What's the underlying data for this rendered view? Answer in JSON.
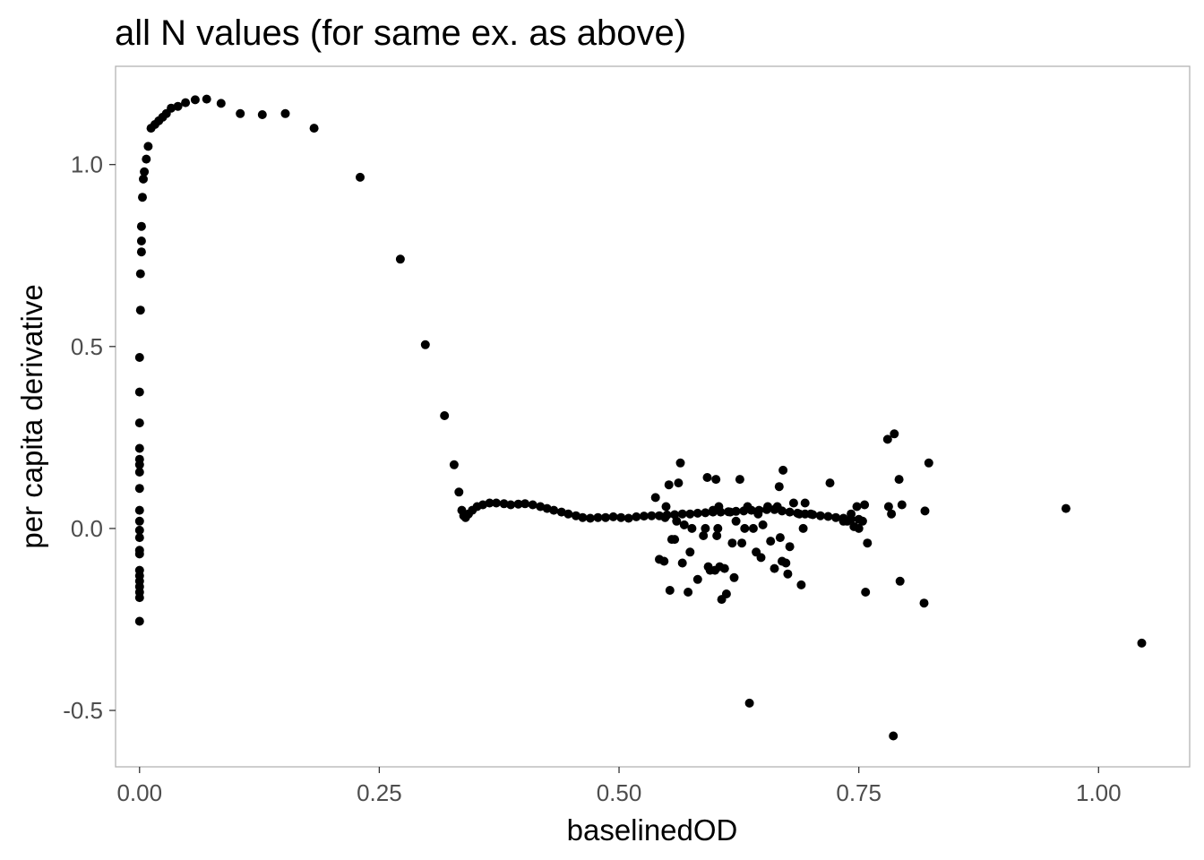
{
  "chart_data": {
    "type": "scatter",
    "title": "all N values (for same ex. as above)",
    "xlabel": "baselinedOD",
    "ylabel": "per capita derivative",
    "xlim": [
      -0.025,
      1.095
    ],
    "ylim": [
      -0.655,
      1.27
    ],
    "x_ticks": [
      {
        "value": 0.0,
        "label": "0.00"
      },
      {
        "value": 0.25,
        "label": "0.25"
      },
      {
        "value": 0.5,
        "label": "0.50"
      },
      {
        "value": 0.75,
        "label": "0.75"
      },
      {
        "value": 1.0,
        "label": "1.00"
      }
    ],
    "y_ticks": [
      {
        "value": -0.5,
        "label": "-0.5"
      },
      {
        "value": 0.0,
        "label": "0.0"
      },
      {
        "value": 0.5,
        "label": "0.5"
      },
      {
        "value": 1.0,
        "label": "1.0"
      }
    ],
    "grid": false,
    "point_color": "#000000",
    "series": [
      {
        "points": [
          [
            0.0,
            -0.255
          ],
          [
            0.0,
            -0.19
          ],
          [
            0.0,
            -0.175
          ],
          [
            0.0,
            -0.16
          ],
          [
            0.0,
            -0.145
          ],
          [
            0.0,
            -0.13
          ],
          [
            0.0,
            -0.115
          ],
          [
            0.0,
            -0.07
          ],
          [
            0.0,
            -0.06
          ],
          [
            0.0,
            -0.025
          ],
          [
            0.0,
            -0.005
          ],
          [
            0.0,
            0.02
          ],
          [
            0.0,
            0.05
          ],
          [
            0.0,
            0.11
          ],
          [
            0.0,
            0.155
          ],
          [
            0.0,
            0.175
          ],
          [
            0.0,
            0.19
          ],
          [
            0.0,
            0.22
          ],
          [
            0.0,
            0.29
          ],
          [
            0.0,
            0.375
          ],
          [
            0.0,
            0.47
          ],
          [
            0.001,
            0.6
          ],
          [
            0.001,
            0.7
          ],
          [
            0.002,
            0.76
          ],
          [
            0.002,
            0.79
          ],
          [
            0.002,
            0.83
          ],
          [
            0.003,
            0.91
          ],
          [
            0.004,
            0.96
          ],
          [
            0.005,
            0.98
          ],
          [
            0.007,
            1.015
          ],
          [
            0.009,
            1.05
          ],
          [
            0.012,
            1.1
          ],
          [
            0.016,
            1.11
          ],
          [
            0.02,
            1.12
          ],
          [
            0.024,
            1.13
          ],
          [
            0.028,
            1.14
          ],
          [
            0.033,
            1.155
          ],
          [
            0.04,
            1.16
          ],
          [
            0.048,
            1.17
          ],
          [
            0.058,
            1.178
          ],
          [
            0.07,
            1.18
          ],
          [
            0.085,
            1.168
          ],
          [
            0.105,
            1.14
          ],
          [
            0.128,
            1.137
          ],
          [
            0.152,
            1.14
          ],
          [
            0.182,
            1.1
          ],
          [
            0.23,
            0.965
          ],
          [
            0.272,
            0.74
          ],
          [
            0.298,
            0.505
          ],
          [
            0.318,
            0.31
          ],
          [
            0.328,
            0.175
          ],
          [
            0.333,
            0.1
          ],
          [
            0.336,
            0.05
          ],
          [
            0.338,
            0.035
          ],
          [
            0.34,
            0.03
          ],
          [
            0.343,
            0.04
          ],
          [
            0.347,
            0.05
          ],
          [
            0.352,
            0.06
          ],
          [
            0.358,
            0.065
          ],
          [
            0.365,
            0.07
          ],
          [
            0.372,
            0.07
          ],
          [
            0.38,
            0.068
          ],
          [
            0.387,
            0.065
          ],
          [
            0.395,
            0.067
          ],
          [
            0.402,
            0.068
          ],
          [
            0.41,
            0.065
          ],
          [
            0.418,
            0.06
          ],
          [
            0.425,
            0.055
          ],
          [
            0.432,
            0.05
          ],
          [
            0.44,
            0.045
          ],
          [
            0.447,
            0.04
          ],
          [
            0.455,
            0.035
          ],
          [
            0.462,
            0.03
          ],
          [
            0.47,
            0.028
          ],
          [
            0.478,
            0.03
          ],
          [
            0.486,
            0.03
          ],
          [
            0.494,
            0.032
          ],
          [
            0.502,
            0.03
          ],
          [
            0.51,
            0.028
          ],
          [
            0.518,
            0.032
          ],
          [
            0.526,
            0.034
          ],
          [
            0.534,
            0.035
          ],
          [
            0.542,
            0.035
          ],
          [
            0.55,
            0.037
          ],
          [
            0.558,
            0.038
          ],
          [
            0.566,
            0.04
          ],
          [
            0.574,
            0.04
          ],
          [
            0.582,
            0.042
          ],
          [
            0.59,
            0.043
          ],
          [
            0.598,
            0.045
          ],
          [
            0.606,
            0.045
          ],
          [
            0.614,
            0.046
          ],
          [
            0.622,
            0.047
          ],
          [
            0.63,
            0.048
          ],
          [
            0.638,
            0.05
          ],
          [
            0.646,
            0.05
          ],
          [
            0.654,
            0.052
          ],
          [
            0.662,
            0.052
          ],
          [
            0.67,
            0.048
          ],
          [
            0.678,
            0.045
          ],
          [
            0.686,
            0.042
          ],
          [
            0.694,
            0.04
          ],
          [
            0.702,
            0.038
          ],
          [
            0.71,
            0.035
          ],
          [
            0.718,
            0.033
          ],
          [
            0.726,
            0.03
          ],
          [
            0.734,
            0.028
          ],
          [
            0.742,
            0.026
          ],
          [
            0.75,
            0.025
          ],
          [
            0.538,
            0.085
          ],
          [
            0.542,
            -0.085
          ],
          [
            0.547,
            -0.09
          ],
          [
            0.548,
            0.03
          ],
          [
            0.549,
            0.06
          ],
          [
            0.552,
            0.12
          ],
          [
            0.553,
            -0.17
          ],
          [
            0.555,
            -0.03
          ],
          [
            0.558,
            -0.03
          ],
          [
            0.56,
            0.02
          ],
          [
            0.562,
            0.125
          ],
          [
            0.564,
            0.18
          ],
          [
            0.566,
            -0.095
          ],
          [
            0.568,
            0.01
          ],
          [
            0.572,
            -0.175
          ],
          [
            0.574,
            -0.065
          ],
          [
            0.576,
            0.0
          ],
          [
            0.582,
            -0.14
          ],
          [
            0.588,
            -0.02
          ],
          [
            0.59,
            0.0
          ],
          [
            0.592,
            0.14
          ],
          [
            0.593,
            -0.105
          ],
          [
            0.595,
            -0.115
          ],
          [
            0.598,
            0.05
          ],
          [
            0.6,
            -0.115
          ],
          [
            0.601,
            0.135
          ],
          [
            0.602,
            -0.02
          ],
          [
            0.603,
            0.0
          ],
          [
            0.604,
            0.06
          ],
          [
            0.605,
            -0.105
          ],
          [
            0.607,
            -0.195
          ],
          [
            0.61,
            -0.11
          ],
          [
            0.612,
            -0.18
          ],
          [
            0.616,
            0.045
          ],
          [
            0.618,
            -0.04
          ],
          [
            0.62,
            -0.135
          ],
          [
            0.622,
            0.02
          ],
          [
            0.626,
            0.135
          ],
          [
            0.628,
            -0.04
          ],
          [
            0.631,
            0.0
          ],
          [
            0.634,
            0.06
          ],
          [
            0.636,
            -0.48
          ],
          [
            0.64,
            0.0
          ],
          [
            0.643,
            -0.065
          ],
          [
            0.645,
            0.04
          ],
          [
            0.648,
            -0.08
          ],
          [
            0.65,
            0.01
          ],
          [
            0.655,
            0.06
          ],
          [
            0.658,
            -0.035
          ],
          [
            0.662,
            -0.11
          ],
          [
            0.665,
            0.06
          ],
          [
            0.667,
            0.115
          ],
          [
            0.668,
            -0.025
          ],
          [
            0.67,
            -0.09
          ],
          [
            0.671,
            0.16
          ],
          [
            0.674,
            -0.095
          ],
          [
            0.676,
            -0.125
          ],
          [
            0.678,
            -0.05
          ],
          [
            0.682,
            0.07
          ],
          [
            0.688,
            0.04
          ],
          [
            0.69,
            -0.155
          ],
          [
            0.692,
            0.0
          ],
          [
            0.694,
            0.07
          ],
          [
            0.7,
            0.04
          ],
          [
            0.72,
            0.125
          ],
          [
            0.734,
            0.02
          ],
          [
            0.738,
            0.02
          ],
          [
            0.742,
            0.04
          ],
          [
            0.745,
            0.005
          ],
          [
            0.748,
            0.06
          ],
          [
            0.75,
            0.0
          ],
          [
            0.754,
            0.02
          ],
          [
            0.756,
            0.065
          ],
          [
            0.757,
            -0.175
          ],
          [
            0.759,
            -0.04
          ],
          [
            0.78,
            0.245
          ],
          [
            0.781,
            0.06
          ],
          [
            0.784,
            0.04
          ],
          [
            0.786,
            -0.57
          ],
          [
            0.787,
            0.26
          ],
          [
            0.792,
            0.135
          ],
          [
            0.793,
            -0.145
          ],
          [
            0.795,
            0.065
          ],
          [
            0.818,
            -0.205
          ],
          [
            0.819,
            0.048
          ],
          [
            0.823,
            0.18
          ],
          [
            0.966,
            0.055
          ],
          [
            1.045,
            -0.315
          ]
        ]
      }
    ]
  }
}
